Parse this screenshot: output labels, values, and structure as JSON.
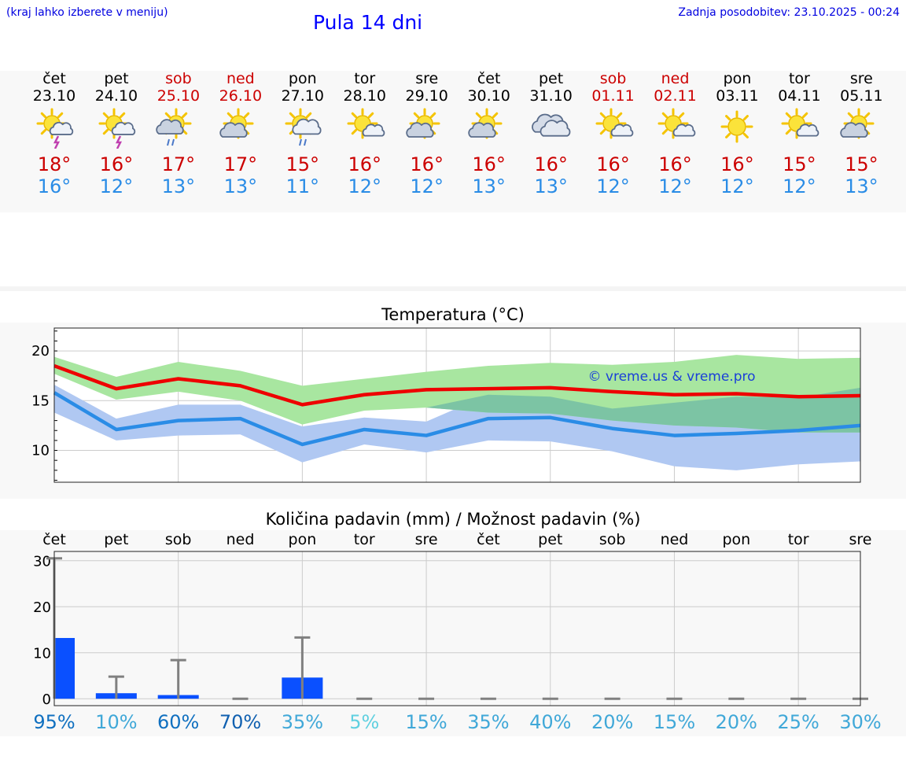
{
  "header": {
    "hint": "(kraj lahko izberete v meniju)",
    "title": "Pula 14 dni",
    "updated": "Zadnja posodobitev: 23.10.2025 - 00:24"
  },
  "days": [
    {
      "name": "čet",
      "date": "23.10",
      "weekend": false,
      "icon": "sun-cloud-thunder-icon",
      "max": "18°",
      "min": "16°"
    },
    {
      "name": "pet",
      "date": "24.10",
      "weekend": false,
      "icon": "sun-cloud-thunder-icon",
      "max": "16°",
      "min": "12°"
    },
    {
      "name": "sob",
      "date": "25.10",
      "weekend": true,
      "icon": "sun-cloud-rain-icon",
      "max": "17°",
      "min": "13°"
    },
    {
      "name": "ned",
      "date": "26.10",
      "weekend": true,
      "icon": "sun-behind-cloud-icon",
      "max": "17°",
      "min": "13°"
    },
    {
      "name": "pon",
      "date": "27.10",
      "weekend": false,
      "icon": "sun-big-cloud-rain-icon",
      "max": "15°",
      "min": "11°"
    },
    {
      "name": "tor",
      "date": "28.10",
      "weekend": false,
      "icon": "sun-small-cloud-icon",
      "max": "16°",
      "min": "12°"
    },
    {
      "name": "sre",
      "date": "29.10",
      "weekend": false,
      "icon": "sun-behind-cloud-icon",
      "max": "16°",
      "min": "12°"
    },
    {
      "name": "čet",
      "date": "30.10",
      "weekend": false,
      "icon": "sun-behind-cloud-icon",
      "max": "16°",
      "min": "13°"
    },
    {
      "name": "pet",
      "date": "31.10",
      "weekend": false,
      "icon": "cloudy-icon",
      "max": "16°",
      "min": "13°"
    },
    {
      "name": "sob",
      "date": "01.11",
      "weekend": true,
      "icon": "sun-small-cloud-icon",
      "max": "16°",
      "min": "12°"
    },
    {
      "name": "ned",
      "date": "02.11",
      "weekend": true,
      "icon": "sun-small-cloud-icon",
      "max": "16°",
      "min": "12°"
    },
    {
      "name": "pon",
      "date": "03.11",
      "weekend": false,
      "icon": "sun-icon",
      "max": "16°",
      "min": "12°"
    },
    {
      "name": "tor",
      "date": "04.11",
      "weekend": false,
      "icon": "sun-small-cloud-icon",
      "max": "15°",
      "min": "12°"
    },
    {
      "name": "sre",
      "date": "05.11",
      "weekend": false,
      "icon": "sun-behind-cloud-icon",
      "max": "15°",
      "min": "13°"
    }
  ],
  "colors": {
    "max_line": "#ee0000",
    "min_line": "#2a8ce6",
    "max_band": "#a8e6a0",
    "min_band": "#b0c8f2",
    "overlap_band": "#7cc4a4",
    "bar": "#0a50ff",
    "error_bar": "#808080",
    "weekend": "#cc0000",
    "title": "#0000ff"
  },
  "chart_data": [
    {
      "type": "line",
      "title": "Temperatura (°C)",
      "x_count": 14,
      "ylim": [
        6.8,
        22.3
      ],
      "yticks": [
        10,
        15,
        20
      ],
      "grid": true,
      "series": [
        {
          "name": "max",
          "values": [
            18.5,
            16.2,
            17.2,
            16.5,
            14.6,
            15.6,
            16.1,
            16.2,
            16.3,
            15.9,
            15.6,
            15.7,
            15.4,
            15.5
          ]
        },
        {
          "name": "min",
          "values": [
            15.8,
            12.1,
            13.0,
            13.2,
            10.6,
            12.1,
            11.5,
            13.2,
            13.3,
            12.2,
            11.5,
            11.7,
            12.0,
            12.5
          ]
        }
      ],
      "bands": [
        {
          "name": "max-range",
          "lower": [
            17.7,
            15.1,
            15.9,
            15.0,
            12.6,
            14.0,
            14.3,
            13.8,
            13.7,
            13.0,
            12.5,
            12.3,
            11.8,
            11.8
          ],
          "upper": [
            19.4,
            17.4,
            18.9,
            18.0,
            16.5,
            17.2,
            17.9,
            18.5,
            18.8,
            18.6,
            18.9,
            19.6,
            19.2,
            19.3
          ]
        },
        {
          "name": "min-range",
          "lower": [
            13.8,
            11.0,
            11.5,
            11.6,
            8.8,
            10.6,
            9.8,
            11.0,
            10.9,
            9.9,
            8.4,
            8.0,
            8.6,
            8.9
          ],
          "upper": [
            16.6,
            13.2,
            14.6,
            14.6,
            12.4,
            13.3,
            12.9,
            15.6,
            15.4,
            14.2,
            14.8,
            15.4,
            15.3,
            16.3
          ]
        }
      ],
      "watermark": "© vreme.us & vreme.pro"
    },
    {
      "type": "bar",
      "title": "Količina padavin (mm) / Možnost padavin (%)",
      "categories": [
        "čet",
        "pet",
        "sob",
        "ned",
        "pon",
        "tor",
        "sre",
        "čet",
        "pet",
        "sob",
        "ned",
        "pon",
        "tor",
        "sre"
      ],
      "values": [
        13.2,
        1.2,
        0.8,
        0,
        4.6,
        0,
        0,
        0,
        0,
        0,
        0,
        0,
        0,
        0
      ],
      "error_max": [
        30.5,
        4.8,
        8.4,
        0,
        13.3,
        0,
        0,
        0,
        0,
        0,
        0,
        0,
        0,
        0
      ],
      "ylim": [
        -1.5,
        32
      ],
      "yticks": [
        0,
        10,
        20,
        30
      ],
      "grid": true,
      "probability": [
        "95%",
        "10%",
        "60%",
        "70%",
        "35%",
        "5%",
        "15%",
        "35%",
        "40%",
        "20%",
        "15%",
        "20%",
        "25%",
        "30%"
      ],
      "probability_colors": [
        "#1070c0",
        "#40a8d8",
        "#1070c0",
        "#1060b0",
        "#40a8d8",
        "#60d0e0",
        "#40a8d8",
        "#40a8d8",
        "#40a8d8",
        "#40a8d8",
        "#40a8d8",
        "#40a8d8",
        "#40a8d8",
        "#40a8d8"
      ]
    }
  ]
}
